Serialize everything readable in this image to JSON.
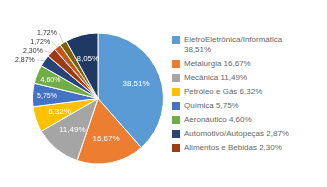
{
  "chart_data": {
    "type": "pie",
    "categories": [
      "EletroEletrônica/Informática\n38,51%",
      "Metalurgia 16,67%",
      "Mecânica 11,49%",
      "Petróleo e Gás 6,32%",
      "Química 5,75%",
      "Aeronáutico 4,60%",
      "Automotivo/Autopeças 2,87%",
      "Alimentos e Bebidas 2,30%",
      null,
      null,
      null
    ],
    "values": [
      38.51,
      16.67,
      11.49,
      6.32,
      5.75,
      4.6,
      2.87,
      2.3,
      1.72,
      1.72,
      8.05
    ],
    "value_labels": [
      "38,51%",
      "16,67%",
      "11,49%",
      "6,32%",
      "5,75%",
      "4,60%",
      "2,87%",
      "2,30%",
      "1,72%",
      "1,72%",
      "8,05%"
    ],
    "colors": [
      "#5B9BD5",
      "#ED7D31",
      "#A5A5A5",
      "#FFC000",
      "#4472C4",
      "#70AD47",
      "#264478",
      "#9E3B12",
      "#BE5A1A",
      "#7F6000",
      "#1F3864"
    ],
    "data_labels": true,
    "legend": "right"
  }
}
